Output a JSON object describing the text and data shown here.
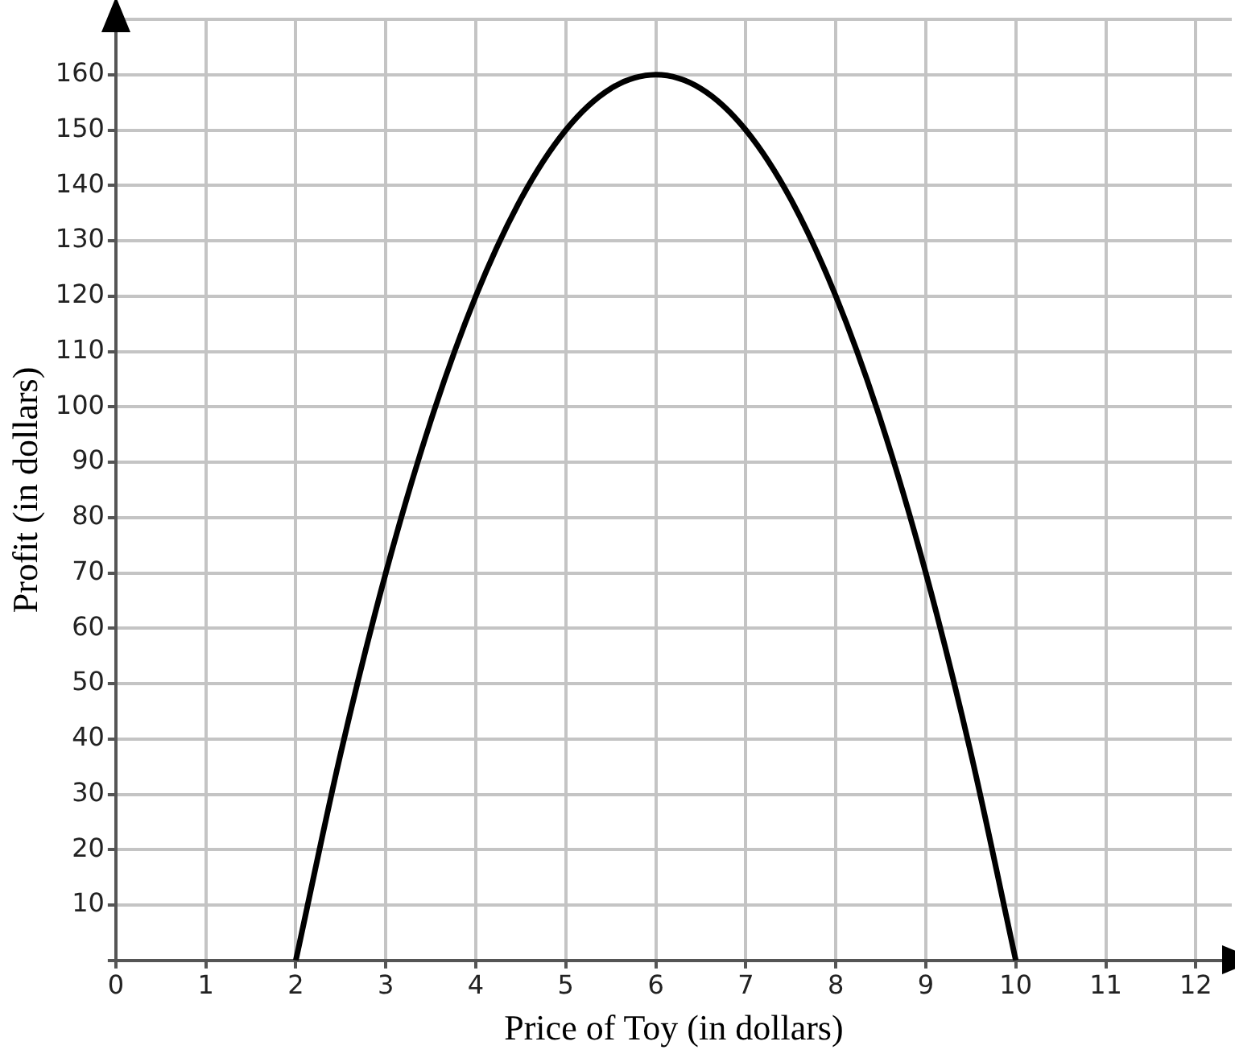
{
  "chart_data": {
    "type": "line",
    "xlabel": "Price of Toy (in dollars)",
    "ylabel": "Profit (in dollars)",
    "x": [
      2,
      2.5,
      3,
      3.5,
      4,
      4.5,
      5,
      5.5,
      6,
      6.5,
      7,
      7.5,
      8,
      8.5,
      9,
      9.5,
      10
    ],
    "series": [
      {
        "color": "#000000",
        "values": [
          0,
          37.5,
          70,
          97.5,
          120,
          137.5,
          150,
          157.5,
          160,
          157.5,
          150,
          137.5,
          120,
          97.5,
          70,
          37.5,
          0
        ]
      }
    ],
    "xlim": [
      0,
      12.4
    ],
    "xticks": [
      0,
      1,
      2,
      3,
      4,
      5,
      6,
      7,
      8,
      9,
      10,
      11,
      12
    ],
    "ylim": [
      0,
      170
    ],
    "yticks": [
      {
        "value": 0,
        "label": null
      },
      10,
      20,
      30,
      40,
      50,
      60,
      70,
      80,
      90,
      100,
      110,
      120,
      130,
      140,
      150,
      160,
      {
        "value": 170,
        "label": null
      }
    ],
    "grid": true,
    "legend": false,
    "marker": "none"
  }
}
